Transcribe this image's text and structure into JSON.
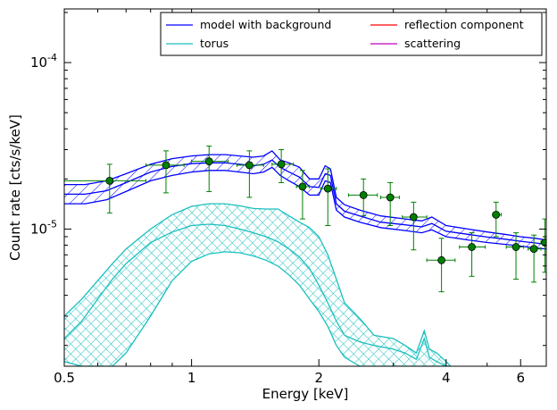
{
  "chart_data": {
    "type": "line",
    "xlabel": "Energy [keV]",
    "ylabel": "Count rate [cts/s/keV]",
    "xscale": "log",
    "yscale": "log",
    "xlim": [
      0.5,
      6.9
    ],
    "ylim": [
      1.5e-06,
      0.00021
    ],
    "grid": false,
    "legend_position": "top-right",
    "x_ticks": [
      {
        "value": 0.5,
        "label": "0.5"
      },
      {
        "value": 1,
        "label": "1"
      },
      {
        "value": 2,
        "label": "2"
      },
      {
        "value": 4,
        "label": "4"
      },
      {
        "value": 6,
        "label": "6"
      }
    ],
    "y_ticks": [
      {
        "value": 1e-05,
        "label": "10",
        "exp": "-5"
      },
      {
        "value": 0.0001,
        "label": "10",
        "exp": "-4"
      }
    ],
    "legend": [
      {
        "label": "model with background",
        "color": "#0000ff"
      },
      {
        "label": "reflection component",
        "color": "#ff0000"
      },
      {
        "label": "torus",
        "color": "#1abfbf"
      },
      {
        "label": "scattering",
        "color": "#bf00bf"
      }
    ],
    "model_band": {
      "color": "#0000ff",
      "x": [
        0.5,
        0.56,
        0.63,
        0.7,
        0.8,
        0.9,
        1.0,
        1.1,
        1.2,
        1.3,
        1.4,
        1.48,
        1.55,
        1.62,
        1.7,
        1.8,
        1.9,
        2.0,
        2.07,
        2.13,
        2.2,
        2.3,
        2.5,
        2.8,
        3.2,
        3.5,
        3.7,
        4.0,
        4.5,
        5.0,
        5.5,
        6.0,
        6.5,
        6.9
      ],
      "upper": [
        1.85e-05,
        1.85e-05,
        1.95e-05,
        2.15e-05,
        2.45e-05,
        2.65e-05,
        2.75e-05,
        2.8e-05,
        2.8e-05,
        2.75e-05,
        2.7e-05,
        2.75e-05,
        2.95e-05,
        2.6e-05,
        2.5e-05,
        2.35e-05,
        2e-05,
        2e-05,
        2.4e-05,
        2.3e-05,
        1.55e-05,
        1.4e-05,
        1.3e-05,
        1.2e-05,
        1.15e-05,
        1.12e-05,
        1.18e-05,
        1.05e-05,
        1e-05,
        9.6e-06,
        9.3e-06,
        9e-06,
        8.8e-06,
        8.6e-06
      ],
      "lower": [
        1.42e-05,
        1.42e-05,
        1.5e-05,
        1.68e-05,
        1.95e-05,
        2.1e-05,
        2.2e-05,
        2.25e-05,
        2.25e-05,
        2.2e-05,
        2.15e-05,
        2.2e-05,
        2.35e-05,
        2.1e-05,
        1.95e-05,
        1.8e-05,
        1.6e-05,
        1.6e-05,
        1.95e-05,
        1.9e-05,
        1.3e-05,
        1.18e-05,
        1.1e-05,
        1.02e-05,
        9.8e-06,
        9.5e-06,
        9.9e-06,
        9e-06,
        8.6e-06,
        8.3e-06,
        8.1e-06,
        7.9e-06,
        7.7e-06,
        7.6e-06
      ],
      "median": [
        1.62e-05,
        1.62e-05,
        1.7e-05,
        1.9e-05,
        2.2e-05,
        2.38e-05,
        2.47e-05,
        2.5e-05,
        2.5e-05,
        2.45e-05,
        2.4e-05,
        2.45e-05,
        2.6e-05,
        2.35e-05,
        2.2e-05,
        2.05e-05,
        1.8e-05,
        1.78e-05,
        2.15e-05,
        2.1e-05,
        1.42e-05,
        1.28e-05,
        1.2e-05,
        1.1e-05,
        1.06e-05,
        1.03e-05,
        1.08e-05,
        9.7e-06,
        9.3e-06,
        8.95e-06,
        8.7e-06,
        8.45e-06,
        8.25e-06,
        8.1e-06
      ]
    },
    "torus_band": {
      "color": "#1abfbf",
      "x": [
        0.5,
        0.55,
        0.6,
        0.65,
        0.7,
        0.8,
        0.9,
        1.0,
        1.1,
        1.2,
        1.3,
        1.4,
        1.5,
        1.6,
        1.7,
        1.8,
        1.9,
        2.0,
        2.1,
        2.2,
        2.3,
        2.5,
        2.7,
        3.0,
        3.2,
        3.4,
        3.55,
        3.65,
        3.8,
        4.0,
        4.1
      ],
      "upper": [
        3e-06,
        3.8e-06,
        4.9e-06,
        6.2e-06,
        7.6e-06,
        1e-05,
        1.22e-05,
        1.37e-05,
        1.42e-05,
        1.42e-05,
        1.38e-05,
        1.33e-05,
        1.32e-05,
        1.32e-05,
        1.2e-05,
        1.1e-05,
        1.02e-05,
        9e-06,
        7e-06,
        5e-06,
        3.6e-06,
        2.9e-06,
        2.3e-06,
        2.2e-06,
        2e-06,
        1.8e-06,
        2.45e-06,
        1.9e-06,
        1.8e-06,
        1.6e-06,
        1.5e-06
      ],
      "lower": [
        1.6e-06,
        1.5e-06,
        1.5e-06,
        1.5e-06,
        1.8e-06,
        3e-06,
        4.9e-06,
        6.4e-06,
        7.1e-06,
        7.3e-06,
        7.2e-06,
        6.9e-06,
        6.5e-06,
        6e-06,
        5.3e-06,
        4.6e-06,
        3.8e-06,
        3.2e-06,
        2.6e-06,
        2e-06,
        1.7e-06,
        1.5e-06,
        1.5e-06,
        1.5e-06,
        1.5e-06,
        1.5e-06,
        1.5e-06,
        1.5e-06,
        1.5e-06,
        1.5e-06,
        1.5e-06
      ],
      "inner_upper": [
        2.2e-06,
        2.8e-06,
        3.8e-06,
        5e-06,
        6.2e-06,
        8.3e-06,
        9.6e-06,
        1.05e-05,
        1.07e-05,
        1.05e-05,
        1e-05,
        9.5e-06,
        9e-06,
        8.4e-06,
        7.6e-06,
        6.8e-06,
        5.8e-06,
        4.6e-06,
        3.6e-06,
        2.8e-06,
        2.3e-06,
        2.1e-06,
        2e-06,
        1.9e-06,
        1.8e-06,
        1.65e-06,
        2.2e-06,
        1.7e-06,
        1.6e-06,
        1.5e-06,
        1.5e-06
      ]
    },
    "data_points": {
      "color": "#008000",
      "points": [
        {
          "x": 0.64,
          "xlo": 0.5,
          "xhi": 0.78,
          "y": 1.95e-05,
          "ylo": 1.25e-05,
          "yhi": 2.45e-05
        },
        {
          "x": 0.87,
          "xlo": 0.78,
          "xhi": 0.96,
          "y": 2.42e-05,
          "ylo": 1.65e-05,
          "yhi": 2.95e-05
        },
        {
          "x": 1.1,
          "xlo": 1.0,
          "xhi": 1.22,
          "y": 2.55e-05,
          "ylo": 1.68e-05,
          "yhi": 3.15e-05
        },
        {
          "x": 1.37,
          "xlo": 1.28,
          "xhi": 1.48,
          "y": 2.42e-05,
          "ylo": 1.55e-05,
          "yhi": 2.95e-05
        },
        {
          "x": 1.63,
          "xlo": 1.55,
          "xhi": 1.74,
          "y": 2.45e-05,
          "ylo": 1.9e-05,
          "yhi": 3e-05
        },
        {
          "x": 1.83,
          "xlo": 1.77,
          "xhi": 1.9,
          "y": 1.8e-05,
          "ylo": 1.15e-05,
          "yhi": 2.25e-05
        },
        {
          "x": 2.1,
          "xlo": 2.02,
          "xhi": 2.2,
          "y": 1.75e-05,
          "ylo": 1.05e-05,
          "yhi": 2.3e-05
        },
        {
          "x": 2.55,
          "xlo": 2.35,
          "xhi": 2.75,
          "y": 1.6e-05,
          "ylo": 1.2e-05,
          "yhi": 2e-05
        },
        {
          "x": 2.95,
          "xlo": 2.8,
          "xhi": 3.1,
          "y": 1.55e-05,
          "ylo": 1.05e-05,
          "yhi": 1.9e-05
        },
        {
          "x": 3.35,
          "xlo": 3.15,
          "xhi": 3.6,
          "y": 1.18e-05,
          "ylo": 7.5e-06,
          "yhi": 1.45e-05
        },
        {
          "x": 3.9,
          "xlo": 3.6,
          "xhi": 4.2,
          "y": 6.5e-06,
          "ylo": 4.2e-06,
          "yhi": 8.8e-06
        },
        {
          "x": 4.6,
          "xlo": 4.3,
          "xhi": 4.95,
          "y": 7.8e-06,
          "ylo": 5.2e-06,
          "yhi": 9.5e-06
        },
        {
          "x": 5.25,
          "xlo": 5.15,
          "xhi": 5.4,
          "y": 1.22e-05,
          "ylo": 9e-06,
          "yhi": 1.45e-05
        },
        {
          "x": 5.85,
          "xlo": 5.55,
          "xhi": 6.1,
          "y": 7.8e-06,
          "ylo": 5e-06,
          "yhi": 9.5e-06
        },
        {
          "x": 6.45,
          "xlo": 6.25,
          "xhi": 6.7,
          "y": 7.6e-06,
          "ylo": 4.8e-06,
          "yhi": 9.2e-06
        },
        {
          "x": 6.85,
          "xlo": 6.7,
          "xhi": 6.9,
          "y": 8.3e-06,
          "ylo": 5.5e-06,
          "yhi": 1.15e-05
        }
      ]
    }
  }
}
